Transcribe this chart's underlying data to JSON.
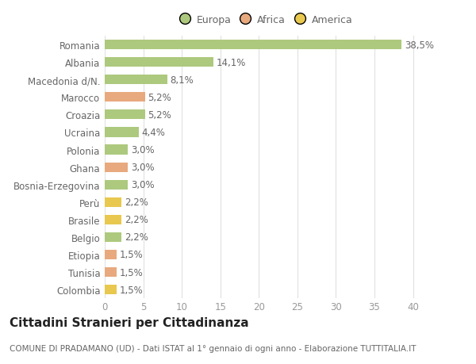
{
  "categories": [
    "Romania",
    "Albania",
    "Macedonia d/N.",
    "Marocco",
    "Croazia",
    "Ucraina",
    "Polonia",
    "Ghana",
    "Bosnia-Erzegovina",
    "Perù",
    "Brasile",
    "Belgio",
    "Etiopia",
    "Tunisia",
    "Colombia"
  ],
  "values": [
    38.5,
    14.1,
    8.1,
    5.2,
    5.2,
    4.4,
    3.0,
    3.0,
    3.0,
    2.2,
    2.2,
    2.2,
    1.5,
    1.5,
    1.5
  ],
  "labels": [
    "38,5%",
    "14,1%",
    "8,1%",
    "5,2%",
    "5,2%",
    "4,4%",
    "3,0%",
    "3,0%",
    "3,0%",
    "2,2%",
    "2,2%",
    "2,2%",
    "1,5%",
    "1,5%",
    "1,5%"
  ],
  "colors": [
    "#adc97e",
    "#adc97e",
    "#adc97e",
    "#e8a97e",
    "#adc97e",
    "#adc97e",
    "#adc97e",
    "#e8a97e",
    "#adc97e",
    "#e8c84e",
    "#e8c84e",
    "#adc97e",
    "#e8a97e",
    "#e8a97e",
    "#e8c84e"
  ],
  "legend_labels": [
    "Europa",
    "Africa",
    "America"
  ],
  "legend_colors": [
    "#adc97e",
    "#e8a97e",
    "#e8c84e"
  ],
  "xlim": [
    0,
    42
  ],
  "xticks": [
    0,
    5,
    10,
    15,
    20,
    25,
    30,
    35,
    40
  ],
  "title": "Cittadini Stranieri per Cittadinanza",
  "subtitle": "COMUNE DI PRADAMANO (UD) - Dati ISTAT al 1° gennaio di ogni anno - Elaborazione TUTTITALIA.IT",
  "bg_color": "#ffffff",
  "grid_color": "#e0e0e0",
  "bar_height": 0.55,
  "label_fontsize": 8.5,
  "tick_fontsize": 8.5,
  "title_fontsize": 11,
  "subtitle_fontsize": 7.5
}
